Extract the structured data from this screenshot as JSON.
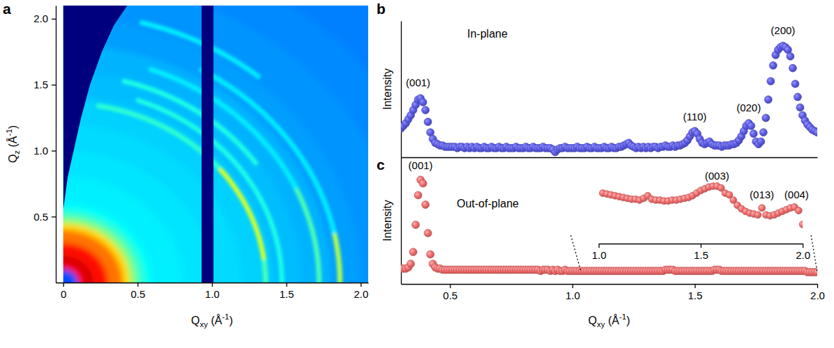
{
  "chart_data": [
    {
      "panel": "a",
      "type": "image",
      "x_label": "Qxy (Å-1)",
      "y_label": "Qz (Å-1)",
      "xlim": [
        -0.05,
        2.05
      ],
      "ylim": [
        0,
        2.1
      ],
      "xticks": [
        0,
        0.5,
        {
          "value": 1,
          "label": "1.0"
        },
        1.5,
        {
          "value": 2,
          "label": "2.0"
        }
      ],
      "yticks": [
        0.5,
        {
          "value": 1,
          "label": "1.0"
        },
        1.5,
        {
          "value": 2,
          "label": "2.0"
        }
      ],
      "zlim": [
        0,
        1
      ],
      "background": {
        "q": [
          0.1,
          0.15,
          0.2,
          0.3,
          0.4,
          0.45,
          0.5,
          0.55,
          0.6,
          0.8,
          1.0,
          1.2,
          1.4,
          1.6,
          1.8,
          2.0,
          2.3,
          2.6,
          3.0
        ],
        "values": [
          0.2,
          0.88,
          0.92,
          0.86,
          0.76,
          0.66,
          0.5,
          0.42,
          0.38,
          0.36,
          0.35,
          0.34,
          0.33,
          0.31,
          0.3,
          0.28,
          0.27,
          0.26,
          0.25
        ]
      },
      "rings": {
        "q": [
          1.36,
          1.36,
          1.36,
          1.47,
          1.58,
          1.72,
          1.72,
          1.86,
          1.86,
          2.04
        ],
        "chi_from": [
          0,
          8,
          40,
          0,
          35,
          0,
          25,
          0,
          12,
          50
        ],
        "chi_to": [
          8,
          40,
          80,
          70,
          75,
          25,
          70,
          12,
          60,
          75
        ],
        "values": [
          0.45,
          0.58,
          0.42,
          0.4,
          0.4,
          0.45,
          0.36,
          0.55,
          0.36,
          0.36
        ]
      },
      "wedge": {
        "x": [
          0,
          0.03,
          0.07,
          0.12,
          0.18,
          0.26,
          0.34,
          0.43
        ],
        "y": [
          0.55,
          0.8,
          1.0,
          1.25,
          1.5,
          1.75,
          1.95,
          2.1
        ]
      },
      "gap": [
        0.93,
        1.01
      ]
    },
    {
      "panel": "b",
      "type": "scatter",
      "title": "In-plane",
      "y_label": "Intensity",
      "xlim": [
        0.3,
        2
      ],
      "ylim": [
        8,
        112
      ],
      "tick_labels": false,
      "marker": "circle",
      "color": "#5a5ae6",
      "x": [
        0.3,
        0.31,
        0.32,
        0.33,
        0.34,
        0.35,
        0.36,
        0.37,
        0.38,
        0.39,
        0.4,
        0.41,
        0.42,
        0.43,
        0.44,
        0.45,
        0.46,
        0.47,
        0.48,
        0.49,
        0.5,
        0.51,
        0.52,
        0.53,
        0.54,
        0.55,
        0.56,
        0.57,
        0.58,
        0.59,
        0.6,
        0.61,
        0.62,
        0.63,
        0.64,
        0.65,
        0.66,
        0.67,
        0.68,
        0.69,
        0.7,
        0.71,
        0.72,
        0.73,
        0.74,
        0.75,
        0.76,
        0.77,
        0.78,
        0.79,
        0.8,
        0.81,
        0.82,
        0.83,
        0.84,
        0.85,
        0.86,
        0.87,
        0.88,
        0.89,
        0.9,
        0.91,
        0.92,
        0.93,
        0.94,
        0.95,
        0.96,
        0.97,
        0.98,
        0.99,
        1,
        1.01,
        1.02,
        1.03,
        1.04,
        1.05,
        1.06,
        1.07,
        1.08,
        1.09,
        1.1,
        1.11,
        1.12,
        1.13,
        1.14,
        1.15,
        1.16,
        1.17,
        1.18,
        1.19,
        1.2,
        1.21,
        1.22,
        1.23,
        1.24,
        1.25,
        1.26,
        1.27,
        1.28,
        1.29,
        1.3,
        1.31,
        1.32,
        1.33,
        1.34,
        1.35,
        1.36,
        1.37,
        1.38,
        1.39,
        1.4,
        1.41,
        1.42,
        1.43,
        1.44,
        1.45,
        1.46,
        1.47,
        1.48,
        1.49,
        1.5,
        1.51,
        1.52,
        1.53,
        1.54,
        1.55,
        1.56,
        1.57,
        1.58,
        1.59,
        1.6,
        1.61,
        1.62,
        1.63,
        1.64,
        1.65,
        1.66,
        1.67,
        1.68,
        1.69,
        1.7,
        1.71,
        1.72,
        1.73,
        1.74,
        1.75,
        1.76,
        1.77,
        1.78,
        1.79,
        1.8,
        1.81,
        1.82,
        1.83,
        1.84,
        1.85,
        1.86,
        1.87,
        1.88,
        1.89,
        1.9,
        1.91,
        1.92,
        1.93,
        1.94,
        1.95,
        1.96,
        1.97,
        1.98,
        1.99,
        2
      ],
      "values": [
        30,
        32,
        34,
        37,
        40,
        44,
        48,
        52,
        53,
        50,
        44,
        35,
        27,
        22,
        19,
        18,
        17,
        17,
        16,
        16,
        16,
        16,
        16,
        15,
        16,
        16,
        15,
        16,
        15,
        16,
        15,
        16,
        15,
        15,
        16,
        15,
        15,
        16,
        15,
        15,
        16,
        15,
        15,
        16,
        15,
        15,
        15,
        16,
        15,
        15,
        15,
        16,
        15,
        15,
        16,
        15,
        15,
        15,
        16,
        15,
        15,
        15,
        14,
        12,
        14,
        15,
        15,
        16,
        15,
        15,
        15,
        15,
        16,
        15,
        15,
        15,
        16,
        15,
        15,
        16,
        15,
        15,
        15,
        16,
        15,
        15,
        16,
        15,
        15,
        16,
        16,
        17,
        18,
        19,
        17,
        16,
        15,
        16,
        15,
        16,
        15,
        16,
        15,
        16,
        16,
        15,
        16,
        16,
        17,
        16,
        16,
        17,
        16,
        17,
        17,
        18,
        19,
        21,
        24,
        27,
        28,
        26,
        22,
        19,
        18,
        19,
        20,
        18,
        17,
        17,
        17,
        16,
        17,
        17,
        17,
        18,
        18,
        19,
        21,
        24,
        28,
        32,
        34,
        32,
        26,
        20,
        18,
        20,
        27,
        38,
        52,
        66,
        78,
        86,
        90,
        92,
        93,
        92,
        90,
        85,
        76,
        64,
        54,
        46,
        40,
        36,
        33,
        31,
        29,
        28,
        27
      ],
      "annotations": [
        {
          "text": "(001)",
          "x": 0.37,
          "y": 62
        },
        {
          "text": "(110)",
          "x": 1.5,
          "y": 36
        },
        {
          "text": "(020)",
          "x": 1.72,
          "y": 43
        },
        {
          "text": "(200)",
          "x": 1.86,
          "y": 102
        }
      ]
    },
    {
      "panel": "c",
      "type": "scatter",
      "title": "Out-of-plane",
      "x_label": "Qxy (Å-1)",
      "y_label": "Intensity",
      "xlim": [
        0.3,
        2
      ],
      "ylim": [
        5,
        112
      ],
      "xticks": [
        0.5,
        {
          "value": 1,
          "label": "1.0"
        },
        1.5,
        {
          "value": 2,
          "label": "2.0"
        }
      ],
      "tick_labels": "x",
      "marker": "circle",
      "color": "#f06a6a",
      "x": [
        0.3,
        0.31,
        0.32,
        0.33,
        0.34,
        0.35,
        0.36,
        0.37,
        0.38,
        0.39,
        0.4,
        0.41,
        0.42,
        0.43,
        0.44,
        0.45,
        0.46,
        0.47,
        0.48,
        0.49,
        0.5,
        0.51,
        0.52,
        0.53,
        0.54,
        0.55,
        0.56,
        0.57,
        0.58,
        0.59,
        0.6,
        0.61,
        0.62,
        0.63,
        0.64,
        0.65,
        0.66,
        0.67,
        0.68,
        0.69,
        0.7,
        0.71,
        0.72,
        0.73,
        0.74,
        0.75,
        0.76,
        0.77,
        0.78,
        0.79,
        0.8,
        0.81,
        0.82,
        0.83,
        0.84,
        0.85,
        0.86,
        0.87,
        0.88,
        0.89,
        0.9,
        0.91,
        0.92,
        0.93,
        0.94,
        0.95,
        0.96,
        0.97,
        0.98,
        0.99,
        1,
        1.01,
        1.02,
        1.03,
        1.04,
        1.05,
        1.06,
        1.07,
        1.08,
        1.09,
        1.1,
        1.11,
        1.12,
        1.13,
        1.14,
        1.15,
        1.16,
        1.17,
        1.18,
        1.19,
        1.2,
        1.21,
        1.22,
        1.23,
        1.24,
        1.25,
        1.26,
        1.27,
        1.28,
        1.29,
        1.3,
        1.31,
        1.32,
        1.33,
        1.34,
        1.35,
        1.36,
        1.37,
        1.38,
        1.39,
        1.4,
        1.41,
        1.42,
        1.43,
        1.44,
        1.45,
        1.46,
        1.47,
        1.48,
        1.49,
        1.5,
        1.51,
        1.52,
        1.53,
        1.54,
        1.55,
        1.56,
        1.57,
        1.58,
        1.59,
        1.6,
        1.61,
        1.62,
        1.63,
        1.64,
        1.65,
        1.66,
        1.67,
        1.68,
        1.69,
        1.7,
        1.71,
        1.72,
        1.73,
        1.74,
        1.75,
        1.76,
        1.77,
        1.78,
        1.79,
        1.8,
        1.81,
        1.82,
        1.83,
        1.84,
        1.85,
        1.86,
        1.87,
        1.88,
        1.89,
        1.9,
        1.91,
        1.92,
        1.93,
        1.94,
        1.95,
        1.96,
        1.97,
        1.98,
        1.99,
        2
      ],
      "values": [
        18,
        18,
        18,
        19,
        22,
        32,
        55,
        80,
        93,
        90,
        72,
        48,
        30,
        22,
        19,
        18,
        18,
        17,
        17,
        17,
        17,
        17,
        17,
        17,
        17,
        17,
        17,
        17,
        17,
        17,
        17,
        17,
        17,
        17,
        17,
        17,
        17,
        17,
        17,
        17,
        17,
        17,
        17,
        17,
        17,
        17,
        17,
        17,
        17,
        17,
        17,
        17,
        17,
        17,
        17,
        17,
        17,
        16,
        17,
        17,
        17,
        16,
        17,
        16,
        17,
        16,
        16,
        17,
        16,
        16,
        16,
        16,
        16,
        16,
        16,
        16,
        16,
        16,
        16,
        16,
        16,
        16,
        16,
        16,
        16,
        16,
        16,
        16,
        16,
        16,
        16,
        16,
        16,
        16,
        16,
        16,
        16,
        16,
        16,
        16,
        16,
        16,
        16,
        16,
        16,
        16,
        16,
        16,
        17,
        17,
        17,
        17,
        16,
        16,
        16,
        16,
        16,
        16,
        16,
        16,
        16,
        16,
        16,
        16,
        16,
        16,
        16,
        16,
        17,
        17,
        17,
        16,
        16,
        16,
        16,
        16,
        16,
        16,
        16,
        16,
        16,
        16,
        16,
        16,
        16,
        16,
        16,
        16,
        16,
        16,
        16,
        16,
        16,
        16,
        16,
        16,
        16,
        16,
        16,
        16,
        16,
        16,
        16,
        16,
        16,
        16,
        15,
        15,
        15,
        15,
        15
      ],
      "annotations": [
        {
          "text": "(001)",
          "x": 0.38,
          "y": 102
        }
      ],
      "inset": {
        "type": "scatter",
        "xlim": [
          1,
          2
        ],
        "ylim": [
          0,
          80
        ],
        "xticks": [
          {
            "value": 1,
            "label": "1.0"
          },
          1.5,
          {
            "value": 2,
            "label": "2.0"
          }
        ],
        "tick_labels": "x",
        "marker": "circle",
        "color": "#f06a6a",
        "x": [
          1.02,
          1.04,
          1.06,
          1.08,
          1.1,
          1.12,
          1.14,
          1.16,
          1.18,
          1.2,
          1.22,
          1.24,
          1.26,
          1.28,
          1.3,
          1.32,
          1.34,
          1.36,
          1.38,
          1.4,
          1.42,
          1.44,
          1.46,
          1.48,
          1.5,
          1.52,
          1.54,
          1.56,
          1.58,
          1.6,
          1.62,
          1.64,
          1.66,
          1.68,
          1.7,
          1.72,
          1.74,
          1.76,
          1.78,
          1.8,
          1.82,
          1.84,
          1.86,
          1.88,
          1.9,
          1.92,
          1.94,
          1.96,
          1.98,
          2
        ],
        "values": [
          58,
          57,
          56,
          55,
          54,
          53,
          52,
          51,
          51,
          50,
          52,
          55,
          51,
          50,
          50,
          49,
          49,
          50,
          50,
          51,
          52,
          53,
          55,
          58,
          61,
          63,
          65,
          66,
          66,
          64,
          58,
          56,
          50,
          44,
          40,
          37,
          35,
          34,
          33,
          41,
          33,
          32,
          33,
          35,
          37,
          39,
          41,
          42,
          38,
          22
        ],
        "annotations": [
          {
            "text": "(003)",
            "x": 1.58,
            "y": 74
          },
          {
            "text": "(013)",
            "x": 1.8,
            "y": 52
          },
          {
            "text": "(004)",
            "x": 1.97,
            "y": 52
          }
        ]
      }
    }
  ]
}
